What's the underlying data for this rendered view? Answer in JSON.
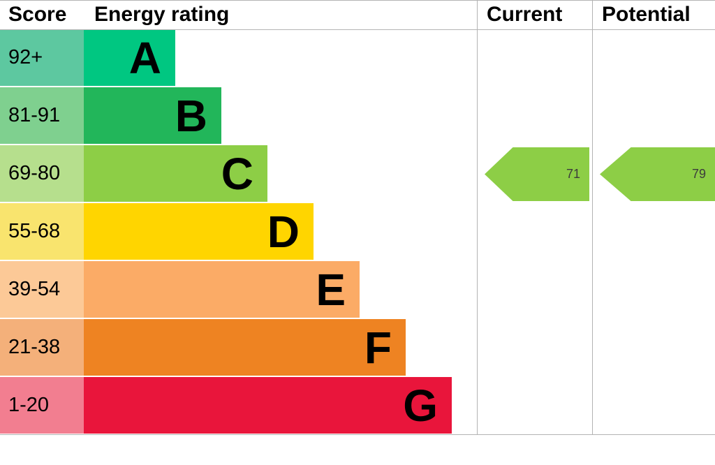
{
  "chart_data": {
    "type": "table",
    "title": "Energy rating",
    "columns": [
      "Score",
      "Energy rating",
      "Current",
      "Potential"
    ],
    "bands": [
      {
        "score_range": "92+",
        "rating": "A",
        "color": "#00c781"
      },
      {
        "score_range": "81-91",
        "rating": "B",
        "color": "#22b65a"
      },
      {
        "score_range": "69-80",
        "rating": "C",
        "color": "#8dce46"
      },
      {
        "score_range": "55-68",
        "rating": "D",
        "color": "#ffd500"
      },
      {
        "score_range": "39-54",
        "rating": "E",
        "color": "#fbab66"
      },
      {
        "score_range": "21-38",
        "rating": "F",
        "color": "#ee8322"
      },
      {
        "score_range": "1-20",
        "rating": "G",
        "color": "#e9153b"
      }
    ],
    "current": {
      "value": 71,
      "band": "C"
    },
    "potential": {
      "value": 79,
      "band": "C"
    }
  },
  "header": {
    "score": "Score",
    "energy_rating": "Energy rating",
    "current": "Current",
    "potential": "Potential"
  },
  "bands": [
    {
      "score": "92+",
      "letter": "A",
      "bar_color": "#00c781",
      "score_color": "#5dc8a0"
    },
    {
      "score": "81-91",
      "letter": "B",
      "bar_color": "#22b65a",
      "score_color": "#7fd08f"
    },
    {
      "score": "69-80",
      "letter": "C",
      "bar_color": "#8dce46",
      "score_color": "#b6df8d"
    },
    {
      "score": "55-68",
      "letter": "D",
      "bar_color": "#ffd500",
      "score_color": "#f9e46e"
    },
    {
      "score": "39-54",
      "letter": "E",
      "bar_color": "#fbab66",
      "score_color": "#fcc997"
    },
    {
      "score": "21-38",
      "letter": "F",
      "bar_color": "#ee8322",
      "score_color": "#f4b07a"
    },
    {
      "score": "1-20",
      "letter": "G",
      "bar_color": "#e9153b",
      "score_color": "#f27e90"
    }
  ],
  "current": {
    "value": "71",
    "band": "C",
    "color": "#8dce46"
  },
  "potential": {
    "value": "79",
    "band": "C",
    "color": "#8dce46"
  }
}
